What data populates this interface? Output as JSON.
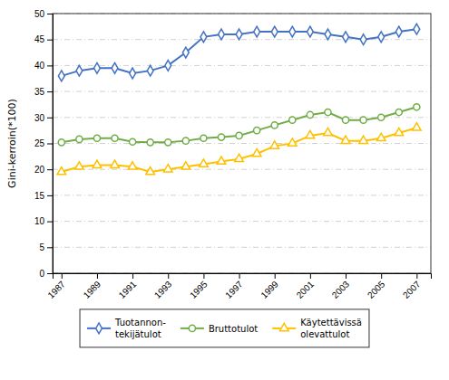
{
  "chart_data": {
    "type": "line",
    "y_label": "Gini-kerroin(*100)",
    "x": [
      1987,
      1988,
      1989,
      1990,
      1991,
      1992,
      1993,
      1994,
      1995,
      1996,
      1997,
      1998,
      1999,
      2000,
      2001,
      2002,
      2003,
      2004,
      2005,
      2006,
      2007
    ],
    "series": [
      {
        "name": "Tuotannon-\ntekijätulot",
        "color": "#4472C4",
        "marker": "diamond",
        "values": [
          38.0,
          39.0,
          39.5,
          39.5,
          38.5,
          39.0,
          40.0,
          42.5,
          45.5,
          46.0,
          46.0,
          46.5,
          46.5,
          46.5,
          46.5,
          46.0,
          45.5,
          45.0,
          45.5,
          46.5,
          47.0
        ]
      },
      {
        "name": "Bruttotulot",
        "color": "#70AD47",
        "marker": "circle",
        "values": [
          25.2,
          25.8,
          26.0,
          26.0,
          25.3,
          25.2,
          25.2,
          25.5,
          26.0,
          26.2,
          26.5,
          27.5,
          28.5,
          29.5,
          30.5,
          31.0,
          29.5,
          29.5,
          30.0,
          31.0,
          32.0
        ]
      },
      {
        "name": "Käytettävissä\nolevattulot",
        "color": "#FFC000",
        "marker": "triangle",
        "values": [
          19.5,
          20.5,
          20.8,
          20.8,
          20.5,
          19.5,
          20.0,
          20.5,
          21.0,
          21.5,
          22.0,
          23.0,
          24.5,
          25.0,
          26.5,
          27.0,
          25.5,
          25.5,
          26.0,
          27.0,
          28.0
        ]
      }
    ],
    "xlim": [
      1986.5,
      2007.8
    ],
    "xticks": [
      1987,
      1989,
      1991,
      1993,
      1995,
      1997,
      1999,
      2001,
      2003,
      2005,
      2007
    ],
    "ylim": [
      0,
      50
    ],
    "yticks": [
      0,
      5,
      10,
      15,
      20,
      25,
      30,
      35,
      40,
      45,
      50
    ],
    "grid": true,
    "legend": "bottom"
  }
}
